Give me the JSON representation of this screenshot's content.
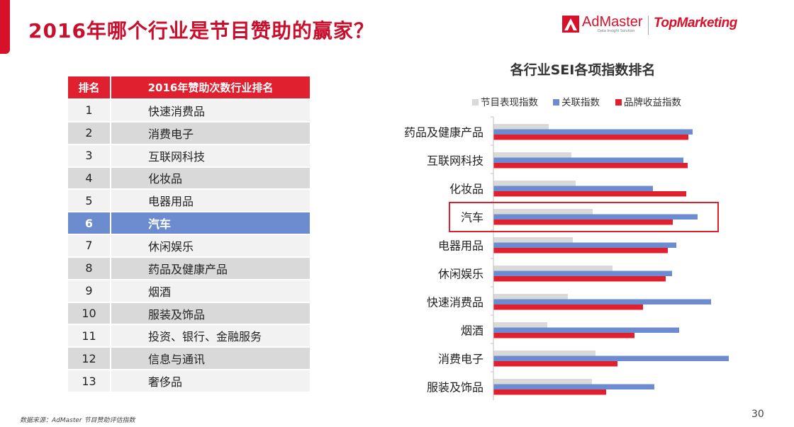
{
  "header": {
    "title": "2016年哪个行业是节目赞助的赢家？",
    "logo_admaster": "AdMaster",
    "logo_admaster_sub": "Data Insight Solution",
    "logo_topmarketing": "TopMarketing"
  },
  "ranking_table": {
    "headers": [
      "排名",
      "2016年赞助次数行业排名"
    ],
    "rows": [
      {
        "rank": "1",
        "industry": "快速消费品"
      },
      {
        "rank": "2",
        "industry": "消费电子"
      },
      {
        "rank": "3",
        "industry": "互联网科技"
      },
      {
        "rank": "4",
        "industry": "化妆品"
      },
      {
        "rank": "5",
        "industry": "电器用品"
      },
      {
        "rank": "6",
        "industry": "汽车"
      },
      {
        "rank": "7",
        "industry": "休闲娱乐"
      },
      {
        "rank": "8",
        "industry": "药品及健康产品"
      },
      {
        "rank": "9",
        "industry": "烟酒"
      },
      {
        "rank": "10",
        "industry": "服装及饰品"
      },
      {
        "rank": "11",
        "industry": "投资、银行、金融服务"
      },
      {
        "rank": "12",
        "industry": "信息与通讯"
      },
      {
        "rank": "13",
        "industry": "奢侈品"
      }
    ],
    "highlight_rank": "6"
  },
  "chart_data": {
    "type": "bar",
    "orientation": "horizontal",
    "title": "各行业SEI各项指数排名",
    "categories": [
      "药品及健康产品",
      "互联网科技",
      "化妆品",
      "汽车",
      "电器用品",
      "休闲娱乐",
      "快速消费品",
      "烟酒",
      "消费电子",
      "服装及饰品"
    ],
    "series": [
      {
        "name": "节目表现指数",
        "color": "#d9d9d9",
        "values": [
          78,
          110,
          116,
          140,
          112,
          168,
          105,
          76,
          144,
          139
        ]
      },
      {
        "name": "关联指数",
        "color": "#6c8ccf",
        "values": [
          281,
          268,
          225,
          288,
          258,
          252,
          307,
          262,
          332,
          227
        ]
      },
      {
        "name": "品牌收益指数",
        "color": "#e0202f",
        "values": [
          275,
          274,
          272,
          253,
          246,
          243,
          211,
          199,
          175,
          159
        ]
      }
    ],
    "highlight_category": "汽车",
    "xlim": [
      0,
      340
    ],
    "legend_position": "top",
    "axis_labels_visible": false,
    "grid": false
  },
  "footer": {
    "source": "数据来源：AdMaster 节目赞助评估指数",
    "page_number": "30"
  }
}
